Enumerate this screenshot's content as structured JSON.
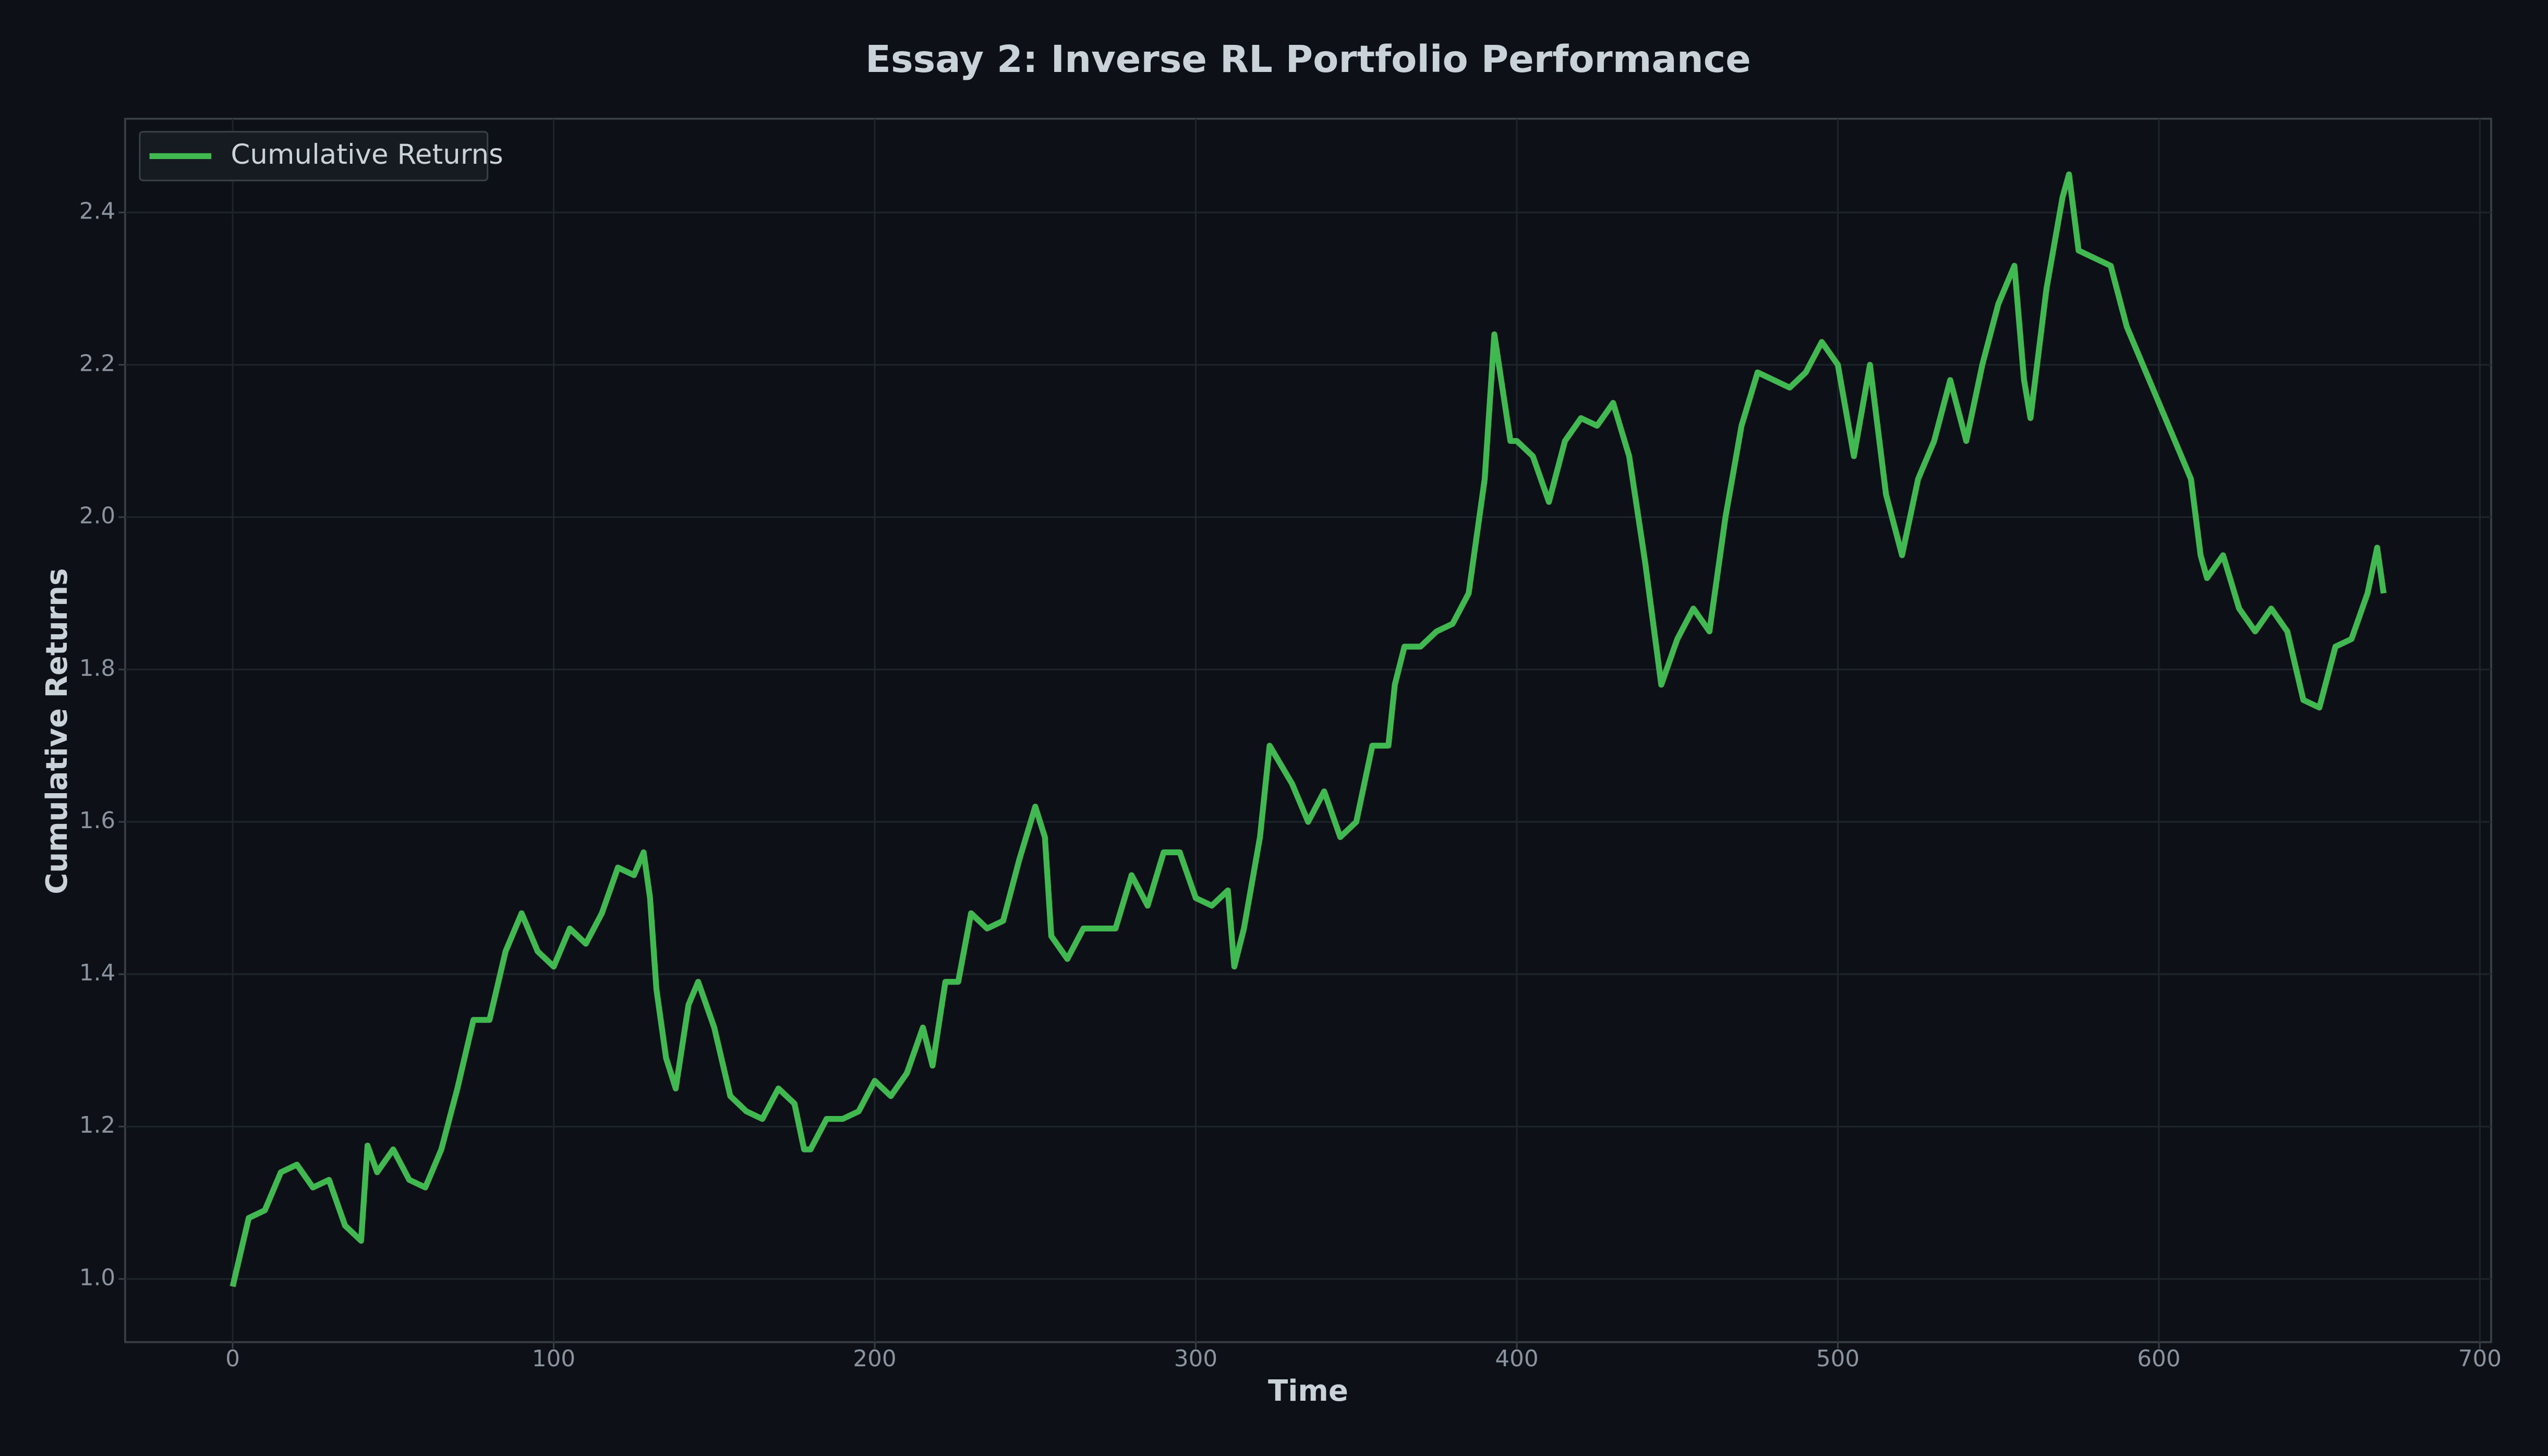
{
  "chart_data": {
    "type": "line",
    "title": "Essay 2: Inverse RL Portfolio Performance",
    "x_label": "Time",
    "y_label": "Cumulative Returns",
    "x": [
      0,
      5,
      10,
      15,
      20,
      25,
      30,
      35,
      40,
      42,
      45,
      50,
      55,
      60,
      65,
      70,
      75,
      80,
      85,
      90,
      95,
      100,
      105,
      110,
      115,
      120,
      125,
      128,
      130,
      132,
      135,
      138,
      142,
      145,
      150,
      155,
      160,
      165,
      170,
      175,
      178,
      180,
      185,
      190,
      195,
      200,
      205,
      210,
      215,
      218,
      222,
      226,
      230,
      235,
      240,
      245,
      250,
      253,
      255,
      260,
      265,
      270,
      275,
      280,
      285,
      290,
      295,
      300,
      305,
      310,
      312,
      315,
      320,
      323,
      330,
      335,
      340,
      345,
      350,
      355,
      360,
      362,
      365,
      370,
      375,
      380,
      385,
      390,
      393,
      398,
      400,
      405,
      410,
      415,
      420,
      425,
      430,
      435,
      440,
      445,
      450,
      455,
      460,
      465,
      470,
      475,
      480,
      485,
      490,
      495,
      500,
      505,
      510,
      515,
      520,
      525,
      530,
      535,
      540,
      545,
      550,
      555,
      558,
      560,
      565,
      570,
      572,
      575,
      580,
      585,
      590,
      595,
      600,
      605,
      610,
      613,
      615,
      620,
      625,
      630,
      635,
      640,
      645,
      650,
      655,
      660,
      665,
      668,
      670
    ],
    "series": [
      {
        "name": "Cumulative Returns",
        "color": "#3fb950",
        "values": [
          0.99,
          1.08,
          1.09,
          1.14,
          1.15,
          1.12,
          1.13,
          1.07,
          1.05,
          1.175,
          1.14,
          1.17,
          1.13,
          1.12,
          1.17,
          1.25,
          1.34,
          1.34,
          1.43,
          1.48,
          1.43,
          1.41,
          1.46,
          1.44,
          1.48,
          1.54,
          1.53,
          1.56,
          1.5,
          1.38,
          1.29,
          1.25,
          1.36,
          1.39,
          1.33,
          1.24,
          1.22,
          1.21,
          1.25,
          1.23,
          1.17,
          1.17,
          1.21,
          1.21,
          1.22,
          1.26,
          1.24,
          1.27,
          1.33,
          1.28,
          1.39,
          1.39,
          1.48,
          1.46,
          1.47,
          1.55,
          1.62,
          1.58,
          1.45,
          1.42,
          1.46,
          1.46,
          1.46,
          1.53,
          1.49,
          1.56,
          1.56,
          1.5,
          1.49,
          1.51,
          1.41,
          1.46,
          1.58,
          1.7,
          1.65,
          1.6,
          1.64,
          1.58,
          1.6,
          1.7,
          1.7,
          1.78,
          1.83,
          1.83,
          1.85,
          1.86,
          1.9,
          2.05,
          2.24,
          2.1,
          2.1,
          2.08,
          2.02,
          2.1,
          2.13,
          2.12,
          2.15,
          2.08,
          1.94,
          1.78,
          1.84,
          1.88,
          1.85,
          2.0,
          2.12,
          2.19,
          2.18,
          2.17,
          2.19,
          2.23,
          2.2,
          2.08,
          2.2,
          2.03,
          1.95,
          2.05,
          2.1,
          2.18,
          2.1,
          2.2,
          2.28,
          2.33,
          2.18,
          2.13,
          2.3,
          2.42,
          2.45,
          2.35,
          2.34,
          2.33,
          2.25,
          2.2,
          2.15,
          2.1,
          2.05,
          1.95,
          1.92,
          1.95,
          1.88,
          1.85,
          1.88,
          1.85,
          1.76,
          1.75,
          1.83,
          1.84,
          1.9,
          1.96,
          1.9
        ]
      }
    ],
    "xlim": [
      -33.5,
      703.5
    ],
    "ylim": [
      0.917,
      2.523
    ],
    "xticks": [
      0,
      100,
      200,
      300,
      400,
      500,
      600,
      700
    ],
    "yticks": [
      {
        "value": 1.0,
        "label": "1.0"
      },
      {
        "value": 1.2,
        "label": "1.2"
      },
      {
        "value": 1.4,
        "label": "1.4"
      },
      {
        "value": 1.6,
        "label": "1.6"
      },
      {
        "value": 1.8,
        "label": "1.8"
      },
      {
        "value": 2.0,
        "label": "2.0"
      },
      {
        "value": 2.2,
        "label": "2.2"
      },
      {
        "value": 2.4,
        "label": "2.4"
      }
    ],
    "grid": true,
    "legend": "upper-left"
  }
}
